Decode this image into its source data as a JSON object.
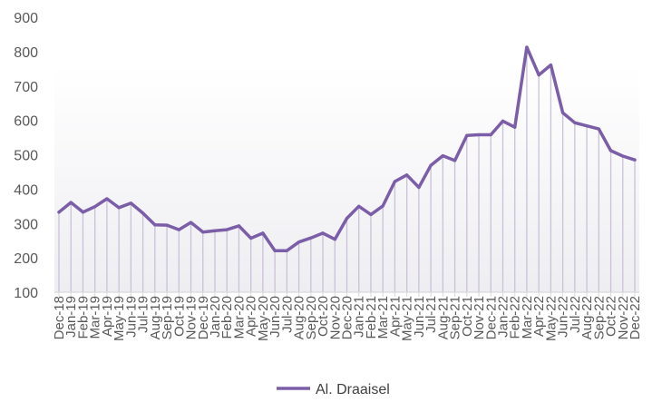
{
  "chart_data": {
    "type": "line",
    "categories": [
      "Dec-18",
      "Jan-19",
      "Feb-19",
      "Mar-19",
      "Apr-19",
      "May-19",
      "Jun-19",
      "Jul-19",
      "Aug-19",
      "Sep-19",
      "Oct-19",
      "Nov-19",
      "Dec-19",
      "Jan-20",
      "Feb-20",
      "Mar-20",
      "Apr-20",
      "May-20",
      "Jun-20",
      "Jul-20",
      "Aug-20",
      "Sep-20",
      "Oct-20",
      "Nov-20",
      "Dec-20",
      "Jan-21",
      "Feb-21",
      "Mar-21",
      "Apr-21",
      "May-21",
      "Jun-21",
      "Jul-21",
      "Aug-21",
      "Sep-21",
      "Oct-21",
      "Nov-21",
      "Dec-21",
      "Jan-22",
      "Feb-22",
      "Mar-22",
      "Apr-22",
      "May-22",
      "Jun-22",
      "Jul-22",
      "Aug-22",
      "Sep-22",
      "Oct-22",
      "Nov-22",
      "Dec-22"
    ],
    "series": [
      {
        "name": "Al. Draaisel",
        "values": [
          333,
          361,
          333,
          349,
          372,
          346,
          359,
          330,
          296,
          295,
          282,
          303,
          275,
          279,
          282,
          293,
          257,
          272,
          221,
          221,
          246,
          258,
          272,
          254,
          315,
          350,
          326,
          351,
          422,
          441,
          405,
          469,
          497,
          483,
          556,
          558,
          558,
          598,
          580,
          813,
          732,
          761,
          622,
          593,
          584,
          575,
          512,
          496,
          485
        ]
      }
    ],
    "ylim": [
      100,
      900
    ],
    "yticks": [
      100,
      200,
      300,
      400,
      500,
      600,
      700,
      800,
      900
    ],
    "xticks": [
      "Dec-18",
      "Jan-19",
      "Feb-19",
      "Mar-19",
      "Apr-19",
      "May-19",
      "Jun-19",
      "Jul-19",
      "Aug-19",
      "Sep-19",
      "Oct-19",
      "Nov-19",
      "Dec-19",
      "Jan-20",
      "Feb-20",
      "Mar-20",
      "Apr-20",
      "May-20",
      "Jun-20",
      "Jul-20",
      "Aug-20",
      "Sep-20",
      "Oct-20",
      "Nov-20",
      "Dec-20",
      "Jan-21",
      "Feb-21",
      "Mar-21",
      "Apr-21",
      "May-21",
      "Jun-21",
      "Jul-21",
      "Aug-21",
      "Sep-21",
      "Oct-21",
      "Nov-21",
      "Dec-21",
      "Jan-22",
      "Feb-22",
      "Mar-22",
      "Apr-22",
      "May-22",
      "Jun-22",
      "Jul-22",
      "Aug-22",
      "Sep-22",
      "Oct-22",
      "Nov-22",
      "Dec-22"
    ],
    "grid": false,
    "drop_lines": true,
    "legend": "bottom-center",
    "colors": {
      "line": "#7b5ea7",
      "drop": "#c9c1d8",
      "fill_top": "#ffffff",
      "fill_bottom": "#eeeef2",
      "axis": "#d9d9d9",
      "text": "#595959"
    }
  }
}
